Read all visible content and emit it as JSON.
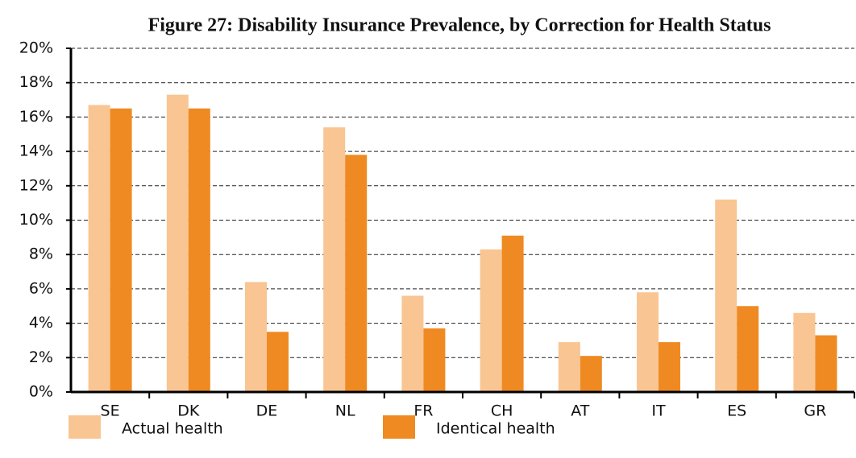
{
  "chart_data": {
    "type": "bar",
    "title": "Figure 27: Disability Insurance Prevalence, by Correction for Health Status",
    "categories": [
      "SE",
      "DK",
      "DE",
      "NL",
      "FR",
      "CH",
      "AT",
      "IT",
      "ES",
      "GR"
    ],
    "series": [
      {
        "name": "Actual health",
        "color": "#f9c593",
        "values": [
          16.7,
          17.3,
          6.4,
          15.4,
          5.6,
          8.3,
          2.9,
          5.8,
          11.2,
          4.6
        ]
      },
      {
        "name": "Identical health",
        "color": "#ef8a22",
        "values": [
          16.5,
          16.5,
          3.5,
          13.8,
          3.7,
          9.1,
          2.1,
          2.9,
          5.0,
          3.3
        ]
      }
    ],
    "ylim": [
      0,
      20
    ],
    "yticks": [
      {
        "value": 0,
        "label": "0%"
      },
      {
        "value": 2,
        "label": "2%"
      },
      {
        "value": 4,
        "label": "4%"
      },
      {
        "value": 6,
        "label": "6%"
      },
      {
        "value": 8,
        "label": "8%"
      },
      {
        "value": 10,
        "label": "10%"
      },
      {
        "value": 12,
        "label": "12%"
      },
      {
        "value": 14,
        "label": "14%"
      },
      {
        "value": 16,
        "label": "16%"
      },
      {
        "value": 18,
        "label": "18%"
      },
      {
        "value": 20,
        "label": "20%"
      }
    ],
    "grid": true,
    "legend": "bottom"
  }
}
